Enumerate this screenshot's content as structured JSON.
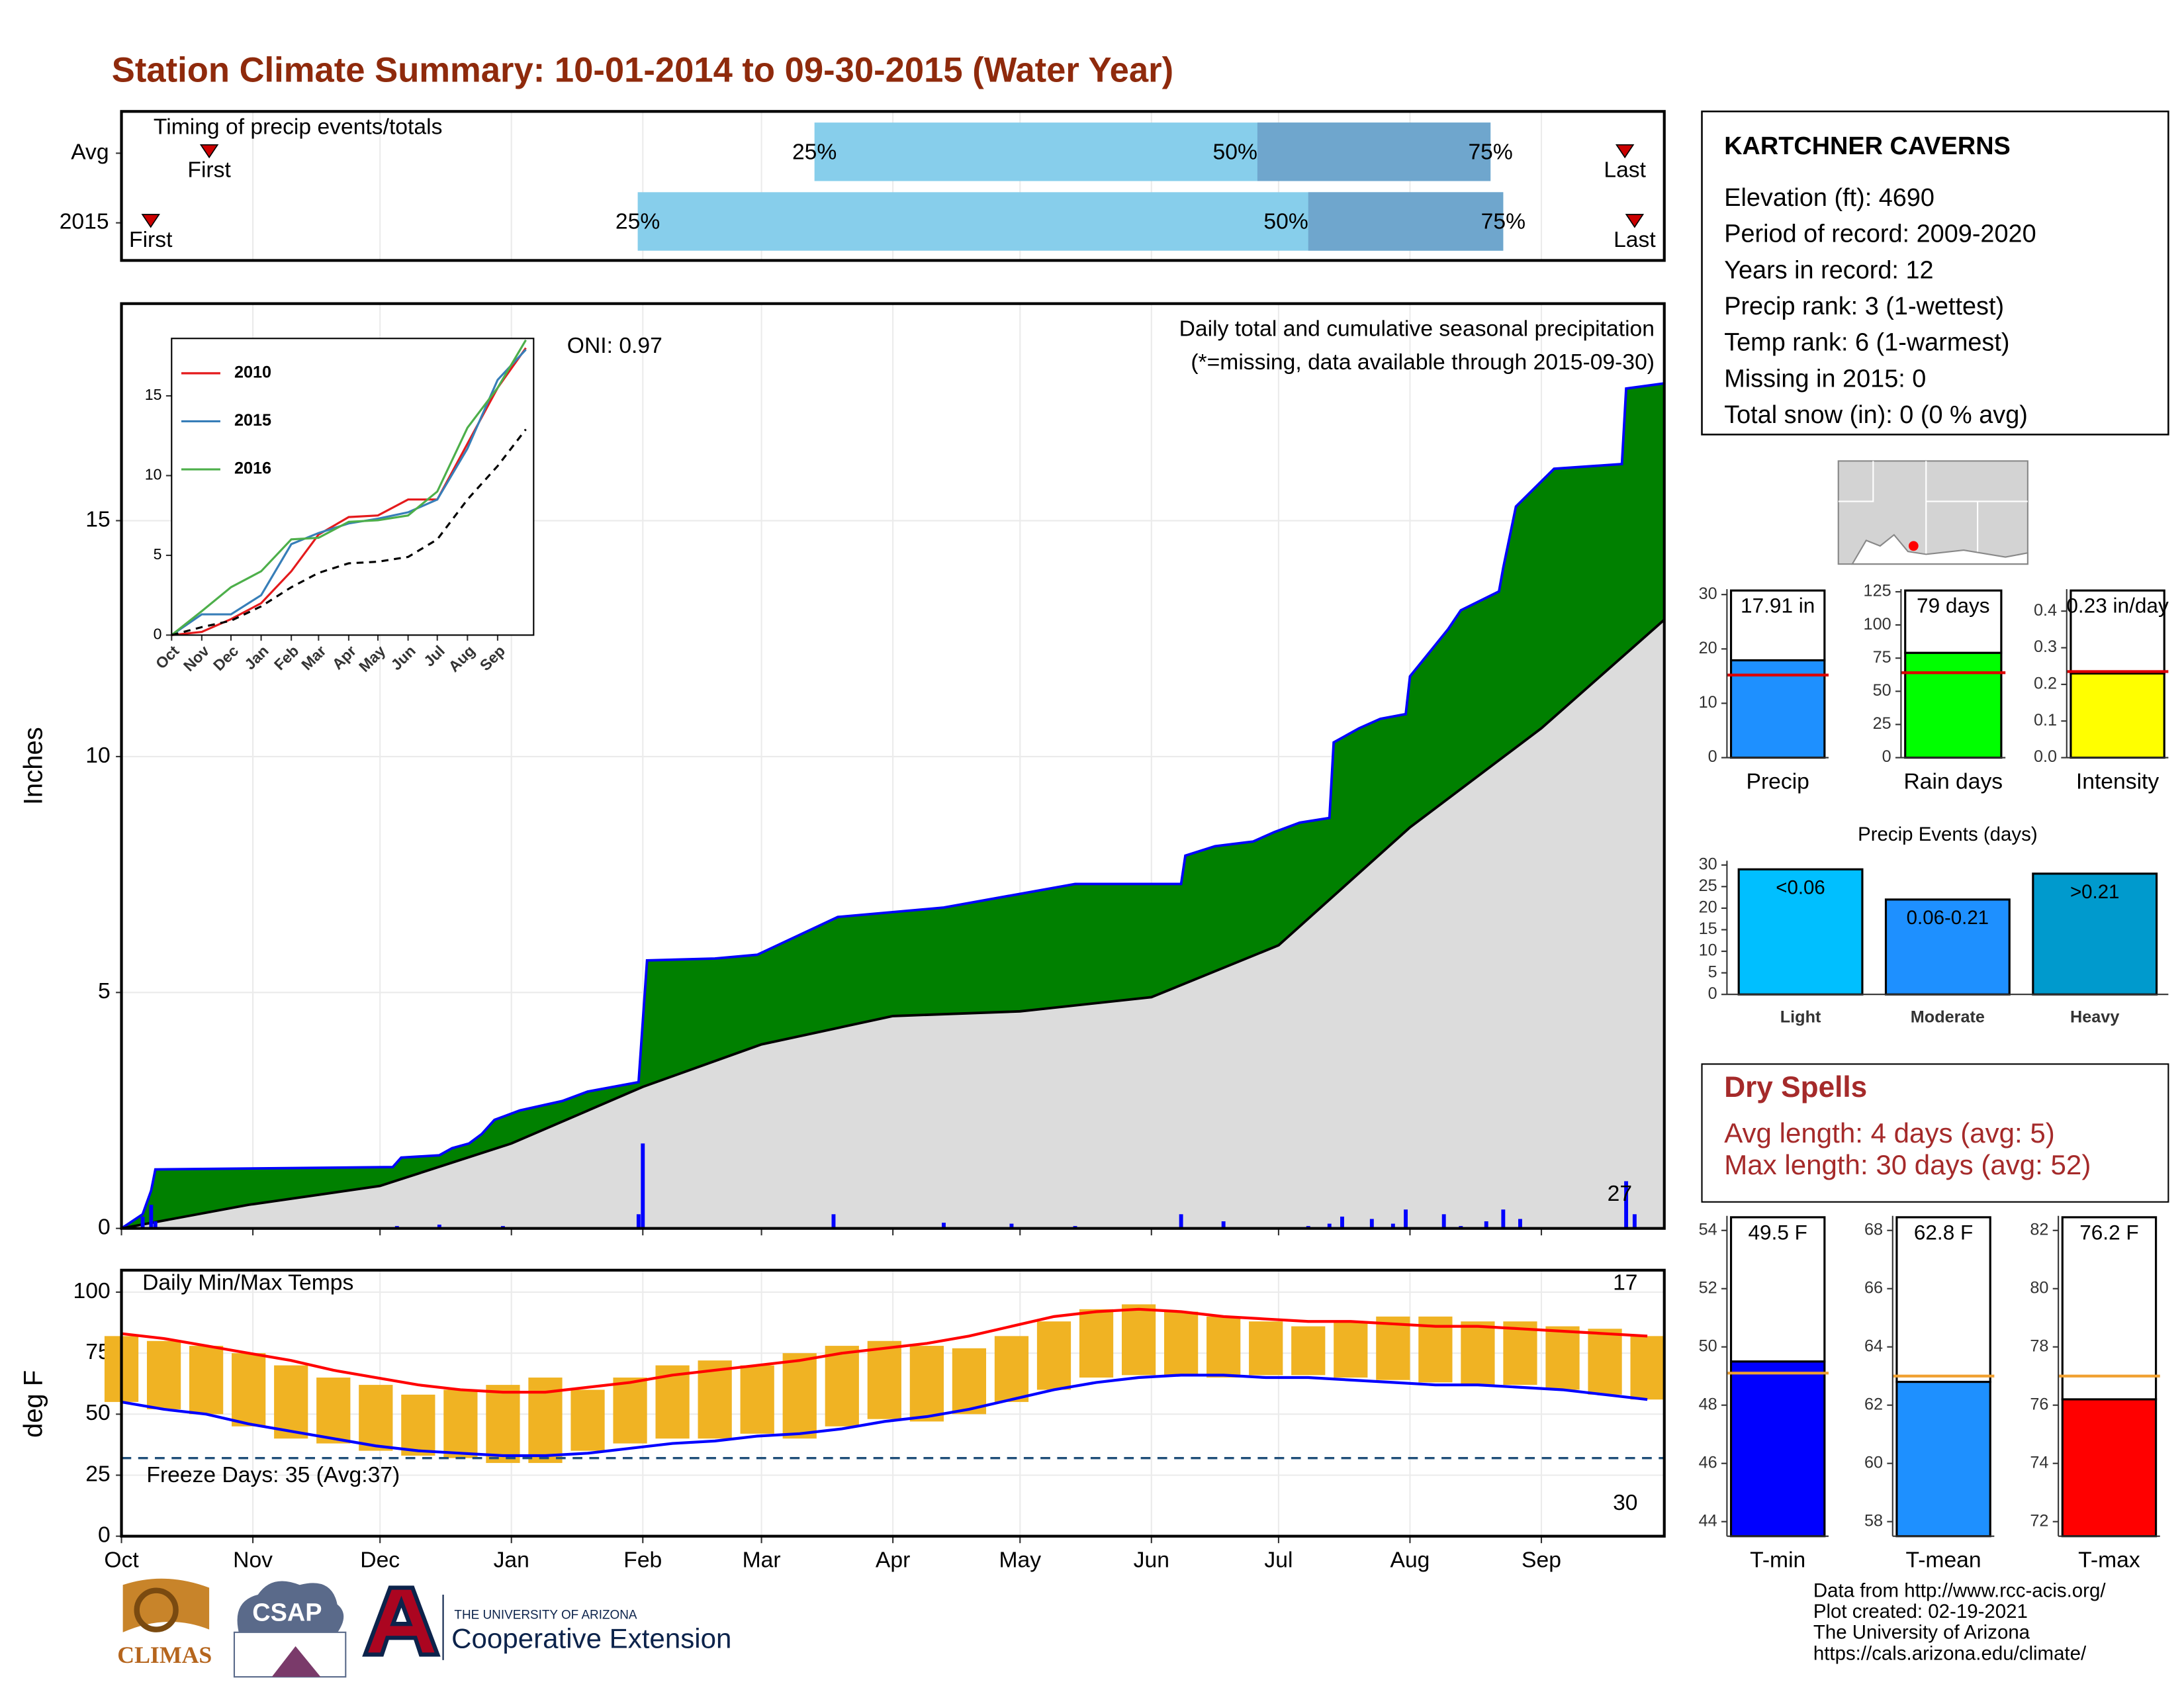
{
  "title": "Station Climate Summary: 10-01-2014 to 09-30-2015 (Water Year)",
  "station": {
    "name": "KARTCHNER CAVERNS",
    "lines": [
      "Elevation (ft): 4690",
      "Period of record: 2009-2020",
      "Years in record: 12",
      "Precip rank: 3 (1-wettest)",
      "Temp rank: 6 (1-warmest)",
      "Missing in 2015: 0",
      "Total snow (in): 0 (0 % avg)"
    ]
  },
  "dry_spells": {
    "title": "Dry Spells",
    "lines": [
      "Avg length: 4 days (avg: 5)",
      "Max length: 30 days (avg: 52)"
    ]
  },
  "credits": [
    "Data from http://www.rcc-acis.org/",
    "Plot created: 02-19-2021",
    "The University of Arizona",
    "https://cals.arizona.edu/climate/"
  ],
  "logos": [
    "CLIMAS",
    "CSAP",
    "THE UNIVERSITY OF ARIZONA",
    "Cooperative Extension"
  ],
  "chart_data": [
    {
      "type": "timeline",
      "title": "Timing of precip events/totals",
      "categories": [
        "Avg",
        "2015"
      ],
      "xlim": [
        0,
        364
      ],
      "first_label": "First",
      "last_label": "Last",
      "quartile_labels": [
        "25%",
        "50%",
        "75%"
      ],
      "first": [
        20.7,
        6.9
      ],
      "q25": [
        163.5,
        121.8
      ],
      "q50": [
        268,
        280
      ],
      "q75": [
        323,
        326
      ],
      "last": [
        354.7,
        357
      ],
      "colors": [
        "#87ceeb",
        "#6fa6cd"
      ],
      "marker_color": "#cc0000"
    },
    {
      "type": "area",
      "title": "Daily total and cumulative seasonal precipitation",
      "subtitle": "(*=missing, data available through 2015-09-30)",
      "annotation": "ONI: 0.97",
      "corner_note": "27",
      "ylabel": "Inches",
      "grid": true,
      "xlim": [
        0,
        364
      ],
      "xticks": [
        0,
        31,
        61,
        92,
        123,
        151,
        182,
        212,
        243,
        273,
        304,
        335
      ],
      "ylim": [
        0,
        19.6
      ],
      "yticks": [
        0,
        5,
        10,
        15
      ],
      "series": [
        {
          "color": "#0000ff",
          "fill": "#008000",
          "x": [
            0,
            5,
            7,
            8,
            64,
            66,
            75,
            78,
            82,
            85,
            88,
            94,
            104,
            110,
            122,
            124,
            140,
            150,
            169,
            194,
            225,
            250,
            251,
            258,
            267,
            272,
            278,
            285,
            286,
            292,
            297,
            303,
            304,
            313,
            316,
            325,
            326,
            329,
            338,
            354,
            355,
            364
          ],
          "values": [
            0,
            0.3,
            0.8,
            1.25,
            1.3,
            1.5,
            1.55,
            1.7,
            1.8,
            2.0,
            2.3,
            2.5,
            2.7,
            2.9,
            3.1,
            5.68,
            5.72,
            5.8,
            6.6,
            6.8,
            7.3,
            7.3,
            7.9,
            8.1,
            8.2,
            8.4,
            8.6,
            8.7,
            10.3,
            10.6,
            10.8,
            10.9,
            11.7,
            12.7,
            13.1,
            13.5,
            14.0,
            15.3,
            16.1,
            16.2,
            17.8,
            17.91
          ]
        },
        {
          "color": "#000000",
          "fill": "#dcdcdc",
          "x": [
            0,
            30,
            61,
            92,
            123,
            151,
            182,
            212,
            243,
            273,
            304,
            335,
            364
          ],
          "values": [
            0,
            0.5,
            0.9,
            1.8,
            3.0,
            3.9,
            4.5,
            4.6,
            4.9,
            6.0,
            8.5,
            10.6,
            12.9
          ]
        },
        {
          "color": "#0000ff",
          "x": [
            5,
            7,
            8,
            65,
            75,
            90,
            122,
            123,
            168,
            194,
            210,
            225,
            250,
            260,
            280,
            285,
            288,
            295,
            300,
            303,
            312,
            316,
            322,
            326,
            330,
            355,
            357
          ],
          "values": [
            0.25,
            0.5,
            0.15,
            0.05,
            0.08,
            0.05,
            0.3,
            1.8,
            0.3,
            0.12,
            0.1,
            0.05,
            0.3,
            0.15,
            0.05,
            0.1,
            0.25,
            0.2,
            0.1,
            0.4,
            0.3,
            0.05,
            0.15,
            0.4,
            0.2,
            1.0,
            0.3
          ]
        }
      ]
    },
    {
      "type": "range",
      "title": "Daily Min/Max Temps",
      "ylabel": "deg F",
      "grid": true,
      "xlim": [
        0,
        364
      ],
      "xticks": [
        {
          "value": 0,
          "label": "Oct"
        },
        {
          "value": 31,
          "label": "Nov"
        },
        {
          "value": 61,
          "label": "Dec"
        },
        {
          "value": 92,
          "label": "Jan"
        },
        {
          "value": 123,
          "label": "Feb"
        },
        {
          "value": 151,
          "label": "Mar"
        },
        {
          "value": 182,
          "label": "Apr"
        },
        {
          "value": 212,
          "label": "May"
        },
        {
          "value": 243,
          "label": "Jun"
        },
        {
          "value": 273,
          "label": "Jul"
        },
        {
          "value": 304,
          "label": "Aug"
        },
        {
          "value": 335,
          "label": "Sep"
        }
      ],
      "ylim": [
        0,
        109
      ],
      "yticks": [
        0,
        25,
        50,
        75,
        100
      ],
      "freeze_line": 32,
      "freeze_label": "Freeze Days: 35 (Avg:37)",
      "max_note": "17",
      "min_note": "30",
      "x": [
        0,
        10,
        20,
        30,
        40,
        50,
        60,
        70,
        80,
        90,
        100,
        110,
        120,
        130,
        140,
        150,
        160,
        170,
        180,
        190,
        200,
        210,
        220,
        230,
        240,
        250,
        260,
        270,
        280,
        290,
        300,
        310,
        320,
        330,
        340,
        350,
        360
      ],
      "bars": {
        "color": "#f0b323",
        "high": [
          82,
          80,
          78,
          75,
          70,
          65,
          62,
          58,
          60,
          62,
          65,
          60,
          65,
          70,
          72,
          70,
          75,
          78,
          80,
          78,
          77,
          82,
          88,
          93,
          95,
          92,
          90,
          88,
          86,
          88,
          90,
          90,
          88,
          88,
          86,
          85,
          82
        ],
        "low": [
          55,
          52,
          50,
          45,
          40,
          38,
          35,
          33,
          32,
          30,
          30,
          35,
          38,
          40,
          40,
          42,
          40,
          45,
          48,
          47,
          50,
          55,
          60,
          65,
          66,
          66,
          65,
          66,
          66,
          65,
          64,
          63,
          62,
          62,
          60,
          58,
          56
        ]
      },
      "series": [
        {
          "color": "#ff0000",
          "values": [
            83,
            81,
            78,
            75,
            72,
            68,
            65,
            62,
            60,
            59,
            59,
            61,
            63,
            66,
            68,
            70,
            72,
            75,
            77,
            79,
            82,
            86,
            90,
            92,
            93,
            92,
            90,
            89,
            88,
            88,
            87,
            86,
            86,
            85,
            84,
            83,
            82
          ]
        },
        {
          "color": "#0000ff",
          "values": [
            55,
            52,
            50,
            46,
            43,
            40,
            37,
            35,
            34,
            33,
            33,
            34,
            36,
            38,
            39,
            41,
            42,
            44,
            47,
            49,
            52,
            56,
            60,
            63,
            65,
            66,
            66,
            65,
            65,
            64,
            63,
            62,
            62,
            61,
            60,
            58,
            56
          ]
        }
      ]
    },
    {
      "type": "line",
      "xlim": [
        0,
        372
      ],
      "xticks": [
        {
          "value": 0,
          "label": "Oct"
        },
        {
          "value": 31,
          "label": "Nov"
        },
        {
          "value": 61,
          "label": "Dec"
        },
        {
          "value": 92,
          "label": "Jan"
        },
        {
          "value": 123,
          "label": "Feb"
        },
        {
          "value": 151,
          "label": "Mar"
        },
        {
          "value": 182,
          "label": "Apr"
        },
        {
          "value": 212,
          "label": "May"
        },
        {
          "value": 243,
          "label": "Jun"
        },
        {
          "value": 273,
          "label": "Jul"
        },
        {
          "value": 304,
          "label": "Aug"
        },
        {
          "value": 335,
          "label": "Sep"
        }
      ],
      "ylim": [
        0,
        18.6
      ],
      "yticks": [
        0,
        5,
        10,
        15
      ],
      "x": [
        0,
        31,
        61,
        92,
        123,
        151,
        182,
        212,
        243,
        273,
        304,
        335,
        364
      ],
      "series": [
        {
          "name": "2010",
          "color": "#e41a1c",
          "values": [
            0,
            0.2,
            1,
            2,
            4,
            6.3,
            7.4,
            7.5,
            8.5,
            8.5,
            12,
            15.5,
            18
          ]
        },
        {
          "name": "2015",
          "color": "#377eb8",
          "values": [
            0,
            1.3,
            1.3,
            2.5,
            5.7,
            6.4,
            7.0,
            7.3,
            7.7,
            8.5,
            11.7,
            16.0,
            17.9
          ]
        },
        {
          "name": "2016",
          "color": "#4daf4a",
          "values": [
            0,
            1.5,
            3,
            4,
            6,
            6.1,
            7.1,
            7.2,
            7.5,
            9,
            13,
            15.5,
            18.5
          ]
        },
        {
          "color": "#000000",
          "dash": true,
          "values": [
            0,
            0.5,
            0.9,
            1.8,
            3.0,
            3.9,
            4.5,
            4.6,
            4.9,
            6.0,
            8.5,
            10.6,
            12.9
          ]
        }
      ]
    },
    {
      "type": "bar",
      "categories": [
        "Precip"
      ],
      "values": [
        17.91
      ],
      "value_labels": [
        "17.91 in"
      ],
      "avg": 15.2,
      "avg_color": "#dd0000",
      "color": "#1e90ff",
      "ylim": [
        0,
        31
      ],
      "yticks": [
        0,
        10,
        20,
        30
      ]
    },
    {
      "type": "bar",
      "categories": [
        "Rain days"
      ],
      "values": [
        79
      ],
      "value_labels": [
        "79 days"
      ],
      "avg": 64,
      "avg_color": "#dd0000",
      "color": "#00ff00",
      "ylim": [
        0,
        127
      ],
      "yticks": [
        0,
        25,
        50,
        75,
        100,
        125
      ]
    },
    {
      "type": "bar",
      "categories": [
        "Intensity"
      ],
      "values": [
        0.23
      ],
      "value_labels": [
        "0.23 in/day"
      ],
      "avg": 0.235,
      "avg_color": "#dd0000",
      "color": "#ffff00",
      "ylim": [
        0,
        0.46
      ],
      "yticks": [
        {
          "value": 0,
          "label": "0.0"
        },
        0.1,
        0.2,
        0.3,
        0.4
      ]
    },
    {
      "type": "bar",
      "title": "Precip Events (days)",
      "categories": [
        "Light",
        "Moderate",
        "Heavy"
      ],
      "values": [
        29,
        22,
        28
      ],
      "thresholds": [
        "<0.06",
        "0.06-0.21",
        ">0.21"
      ],
      "colors": [
        "#00bfff",
        "#1e90ff",
        "#009acd"
      ],
      "ylim": [
        0,
        31
      ],
      "yticks": [
        0,
        5,
        10,
        15,
        20,
        25,
        30
      ]
    },
    {
      "type": "bar",
      "categories": [
        "T-min"
      ],
      "values": [
        49.5
      ],
      "value_labels": [
        "49.5 F"
      ],
      "avg": 49.1,
      "avg_color": "#f0a030",
      "color": "#0000ff",
      "ylim": [
        43.5,
        54.5
      ],
      "yticks": [
        44,
        46,
        48,
        50,
        52,
        54
      ]
    },
    {
      "type": "bar",
      "categories": [
        "T-mean"
      ],
      "values": [
        62.8
      ],
      "value_labels": [
        "62.8 F"
      ],
      "avg": 63.0,
      "avg_color": "#f0a030",
      "color": "#1e90ff",
      "ylim": [
        57.5,
        68.5
      ],
      "yticks": [
        58,
        60,
        62,
        64,
        66,
        68
      ]
    },
    {
      "type": "bar",
      "categories": [
        "T-max"
      ],
      "values": [
        76.2
      ],
      "value_labels": [
        "76.2 F"
      ],
      "avg": 77.0,
      "avg_color": "#f0a030",
      "color": "#ff0000",
      "ylim": [
        71.5,
        82.5
      ],
      "yticks": [
        72,
        74,
        76,
        78,
        80,
        82
      ]
    }
  ]
}
